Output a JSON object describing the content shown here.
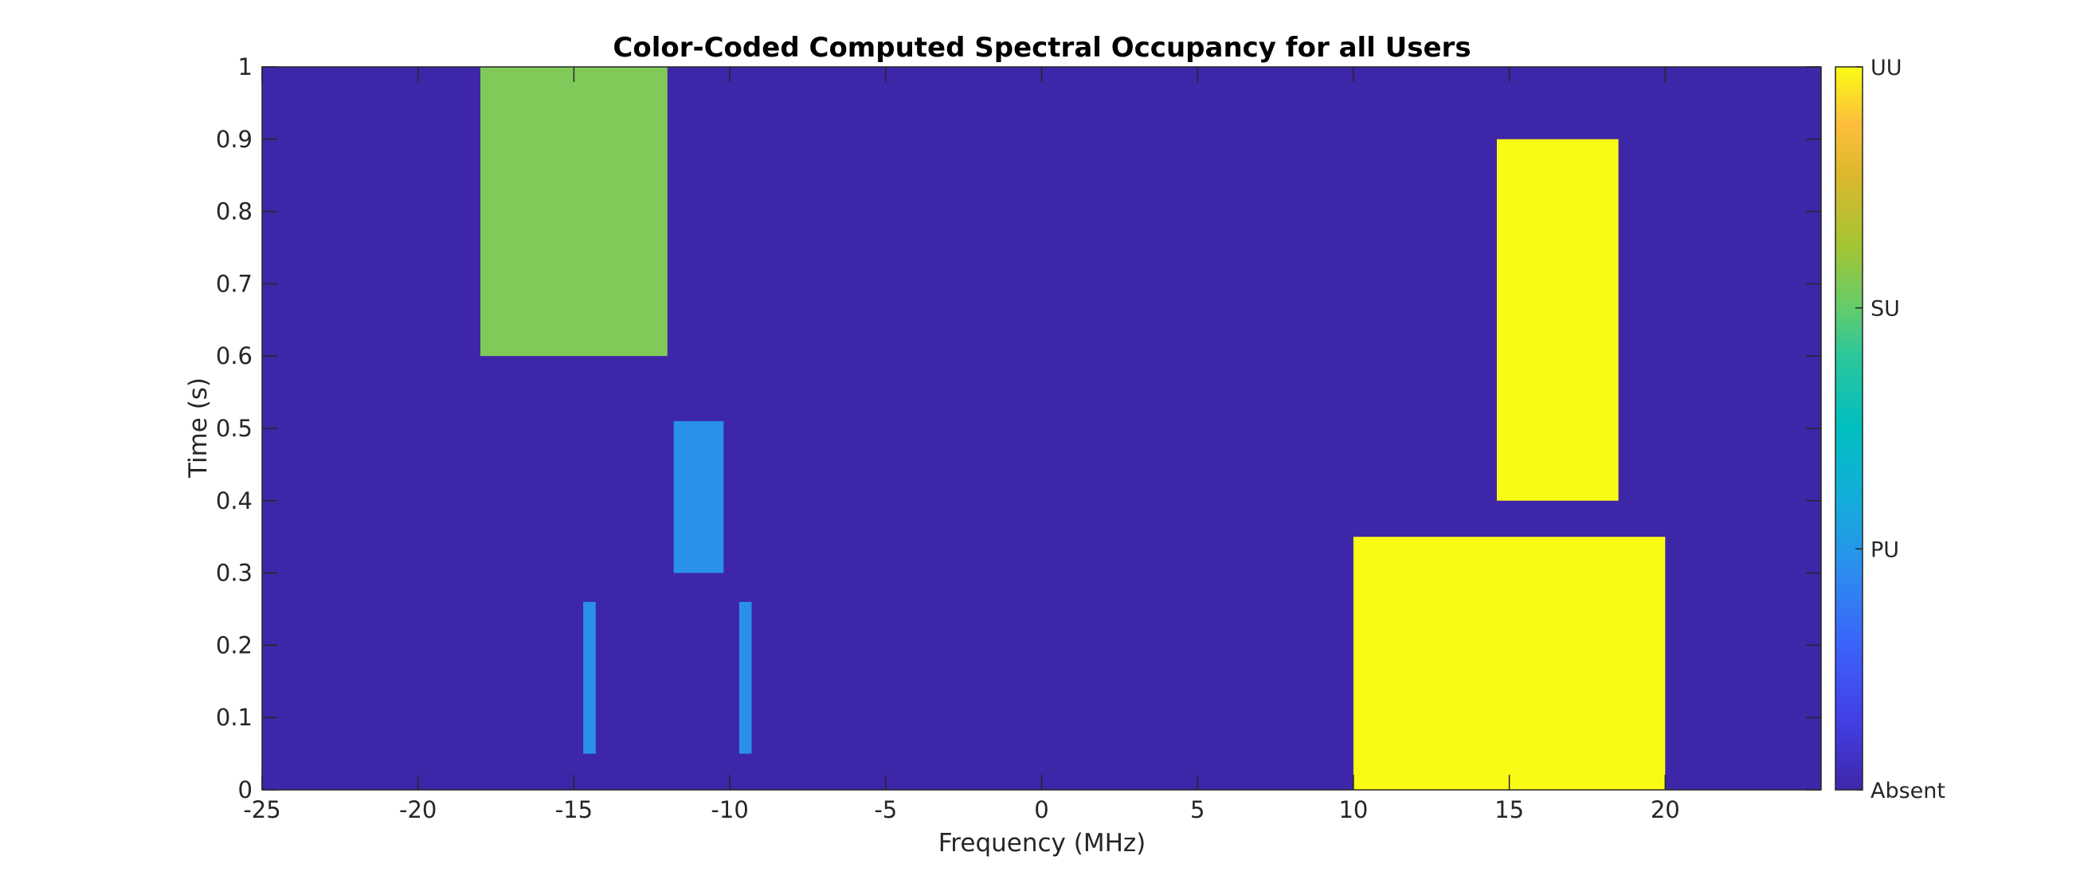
{
  "chart_data": {
    "type": "heatmap",
    "title": "Color-Coded Computed Spectral Occupancy for all Users",
    "xlabel": "Frequency (MHz)",
    "ylabel": "Time (s)",
    "xlim": [
      -25,
      25
    ],
    "ylim": [
      0,
      1
    ],
    "xticks": [
      -25,
      -20,
      -15,
      -10,
      -5,
      0,
      5,
      10,
      15,
      20
    ],
    "xtick_labels": [
      "-25",
      "-20",
      "-15",
      "-10",
      "-5",
      "0",
      "5",
      "10",
      "15",
      "20"
    ],
    "yticks": [
      0,
      0.1,
      0.2,
      0.3,
      0.4,
      0.5,
      0.6,
      0.7,
      0.8,
      0.9,
      1
    ],
    "ytick_labels": [
      "0",
      "0.1",
      "0.2",
      "0.3",
      "0.4",
      "0.5",
      "0.6",
      "0.7",
      "0.8",
      "0.9",
      "1"
    ],
    "grid": false,
    "background_class": "Absent",
    "colorbar": {
      "position": "right",
      "colormap": "parula",
      "ticks": [
        {
          "label": "Absent",
          "value": 0
        },
        {
          "label": "PU",
          "value": 1
        },
        {
          "label": "SU",
          "value": 2
        },
        {
          "label": "UU",
          "value": 3
        }
      ]
    },
    "class_colors": {
      "Absent": "#3e26a8",
      "PU": "#2991ea",
      "SU": "#7fca58",
      "UU": "#f9fb15"
    },
    "regions": [
      {
        "class": "SU",
        "freq": [
          -18,
          -12
        ],
        "time": [
          0.6,
          1.0
        ]
      },
      {
        "class": "PU",
        "freq": [
          -11.8,
          -10.2
        ],
        "time": [
          0.3,
          0.51
        ]
      },
      {
        "class": "PU",
        "freq": [
          -14.7,
          -14.3
        ],
        "time": [
          0.05,
          0.26
        ]
      },
      {
        "class": "PU",
        "freq": [
          -9.7,
          -9.3
        ],
        "time": [
          0.05,
          0.26
        ]
      },
      {
        "class": "UU",
        "freq": [
          14.6,
          18.5
        ],
        "time": [
          0.4,
          0.9
        ]
      },
      {
        "class": "UU",
        "freq": [
          10,
          20
        ],
        "time": [
          0.0,
          0.35
        ]
      }
    ]
  }
}
